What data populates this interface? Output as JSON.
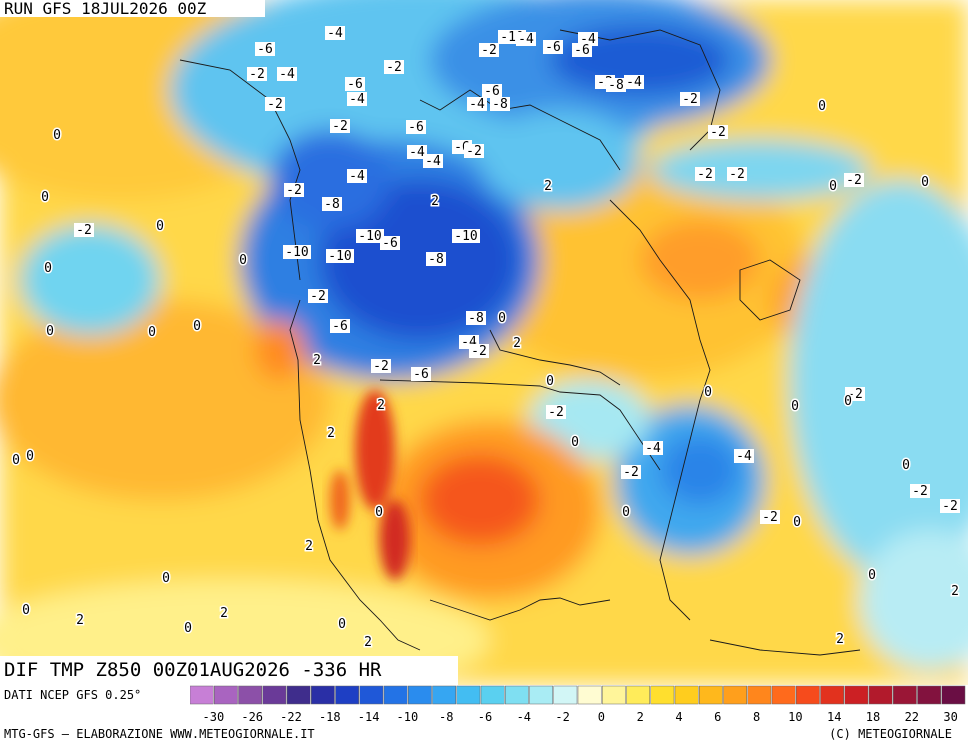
{
  "header": {
    "run_label": "RUN GFS 18JUL2026 00Z"
  },
  "title": {
    "text": "DIF TMP Z850 00Z01AUG2026 -336 HR"
  },
  "footer": {
    "source": "DATI NCEP GFS 0.25°",
    "credit_left": "MTG-GFS — ELABORAZIONE WWW.METEOGIORNALE.IT",
    "credit_right": "(C) METEOGIORNALE"
  },
  "legend": {
    "colors": [
      "#c77fd6",
      "#a964c0",
      "#8c50a8",
      "#6a3a98",
      "#3f2d8c",
      "#2a2fa6",
      "#1e3fc4",
      "#1f58d8",
      "#2373e6",
      "#2a8cee",
      "#36a6f2",
      "#43bdf2",
      "#5ad0f0",
      "#7fdff2",
      "#a9ecf4",
      "#d2f6f6",
      "#fffcd2",
      "#fff59a",
      "#ffec5a",
      "#ffdf2e",
      "#ffcd1e",
      "#ffb81c",
      "#ff9f1c",
      "#ff861c",
      "#ff6a1c",
      "#f64b1c",
      "#e2321e",
      "#cc2024",
      "#b21a2c",
      "#9a1636",
      "#82123e",
      "#6a0e44"
    ],
    "ticks": [
      "-30",
      "-26",
      "-22",
      "-18",
      "-14",
      "-10",
      "-8",
      "-6",
      "-4",
      "-2",
      "0",
      "2",
      "4",
      "6",
      "8",
      "10",
      "14",
      "18",
      "22",
      "30"
    ]
  },
  "map_labels": [
    {
      "text": "-6",
      "c": "b"
    },
    {
      "text": "-2",
      "c": "b"
    },
    {
      "text": "-4",
      "c": "b"
    },
    {
      "text": "-2",
      "c": "b"
    },
    {
      "text": "-4",
      "c": "b"
    },
    {
      "text": "-6",
      "c": "b"
    },
    {
      "text": "-4",
      "c": "b"
    },
    {
      "text": "-2",
      "c": "b"
    },
    {
      "text": "-6",
      "c": "b"
    },
    {
      "text": "-4",
      "c": "b"
    },
    {
      "text": "-6",
      "c": "b"
    },
    {
      "text": "-2",
      "c": "b"
    },
    {
      "text": "-10",
      "c": "b"
    },
    {
      "text": "-4",
      "c": "b"
    },
    {
      "text": "-6",
      "c": "b"
    },
    {
      "text": "-8",
      "c": "b"
    },
    {
      "text": "-10",
      "c": "b"
    },
    {
      "text": "-8",
      "c": "b"
    },
    {
      "text": "-4",
      "c": "b"
    },
    {
      "text": "-2",
      "c": "b"
    },
    {
      "text": "-2",
      "c": "b"
    },
    {
      "text": "-6",
      "c": "b"
    },
    {
      "text": "-4",
      "c": "b"
    },
    {
      "text": "-4",
      "c": "b"
    },
    {
      "text": "-2",
      "c": "b"
    },
    {
      "text": "-6",
      "c": "b"
    },
    {
      "text": "-4",
      "c": "b"
    },
    {
      "text": "-8",
      "c": "b"
    },
    {
      "text": "-10",
      "c": "b"
    },
    {
      "text": "-6",
      "c": "b"
    },
    {
      "text": "-10",
      "c": "b"
    },
    {
      "text": "-10",
      "c": "b"
    },
    {
      "text": "-8",
      "c": "b"
    },
    {
      "text": "-4",
      "c": "b"
    },
    {
      "text": "-2",
      "c": "b"
    },
    {
      "text": "-8",
      "c": "b"
    },
    {
      "text": "-6",
      "c": "b"
    },
    {
      "text": "-4",
      "c": "b"
    },
    {
      "text": "-2",
      "c": "b"
    },
    {
      "text": "-2",
      "c": "b"
    },
    {
      "text": "-6",
      "c": "b"
    },
    {
      "text": "-2",
      "c": "b"
    },
    {
      "text": "-2",
      "c": "b"
    },
    {
      "text": "-2",
      "c": "b"
    },
    {
      "text": "-4",
      "c": "b"
    },
    {
      "text": "-2",
      "c": "b"
    },
    {
      "text": "-2",
      "c": "b"
    },
    {
      "text": "-2",
      "c": "b"
    },
    {
      "text": "-2",
      "c": "b"
    },
    {
      "text": "-2",
      "c": "b"
    },
    {
      "text": "-4",
      "c": "b"
    },
    {
      "text": "-2",
      "c": "b"
    },
    {
      "text": "-2",
      "c": "b"
    },
    {
      "text": "-2",
      "c": "b"
    },
    {
      "text": "-2",
      "c": "b"
    },
    {
      "text": "-2",
      "c": "b"
    },
    {
      "text": "0",
      "c": "w"
    },
    {
      "text": "0",
      "c": "w"
    },
    {
      "text": "0",
      "c": "w"
    },
    {
      "text": "0",
      "c": "w"
    },
    {
      "text": "0",
      "c": "w"
    },
    {
      "text": "0",
      "c": "w"
    },
    {
      "text": "0",
      "c": "w"
    },
    {
      "text": "0",
      "c": "w"
    },
    {
      "text": "0",
      "c": "w"
    },
    {
      "text": "0",
      "c": "w"
    },
    {
      "text": "0",
      "c": "w"
    },
    {
      "text": "0",
      "c": "w"
    },
    {
      "text": "0",
      "c": "w"
    },
    {
      "text": "0",
      "c": "w"
    },
    {
      "text": "0",
      "c": "w"
    },
    {
      "text": "0",
      "c": "w"
    },
    {
      "text": "0",
      "c": "w"
    },
    {
      "text": "0",
      "c": "w"
    },
    {
      "text": "0",
      "c": "w"
    },
    {
      "text": "0",
      "c": "w"
    },
    {
      "text": "0",
      "c": "w"
    },
    {
      "text": "0",
      "c": "w"
    },
    {
      "text": "0",
      "c": "w"
    },
    {
      "text": "0",
      "c": "w"
    },
    {
      "text": "0",
      "c": "w"
    },
    {
      "text": "0",
      "c": "w"
    },
    {
      "text": "0",
      "c": "w"
    },
    {
      "text": "0",
      "c": "w"
    },
    {
      "text": "2",
      "c": "w"
    },
    {
      "text": "2",
      "c": "w"
    },
    {
      "text": "2",
      "c": "w"
    },
    {
      "text": "2",
      "c": "w"
    },
    {
      "text": "2",
      "c": "w"
    },
    {
      "text": "2",
      "c": "w"
    },
    {
      "text": "2",
      "c": "w"
    },
    {
      "text": "2",
      "c": "w"
    },
    {
      "text": "2",
      "c": "w"
    },
    {
      "text": "2",
      "c": "w"
    },
    {
      "text": "2",
      "c": "w"
    },
    {
      "text": "2",
      "c": "w"
    },
    {
      "text": "2",
      "c": "w"
    },
    {
      "text": "2",
      "c": "w"
    },
    {
      "text": "2",
      "c": "w"
    },
    {
      "text": "2",
      "c": "w"
    }
  ]
}
